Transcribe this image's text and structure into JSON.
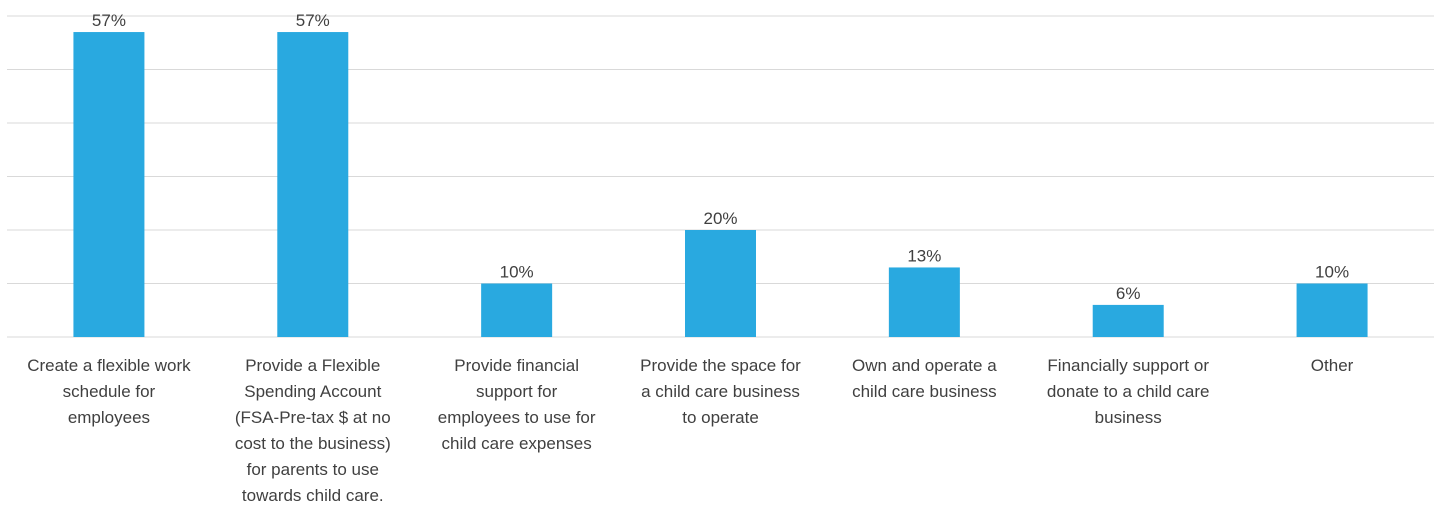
{
  "chart_data": {
    "type": "bar",
    "categories": [
      "Create a flexible work schedule for employees",
      "Provide a Flexible Spending Account (FSA-Pre-tax $ at no cost to the business) for parents to use towards child care.",
      "Provide financial support for employees to use for child care expenses",
      "Provide the space for a child care business to operate",
      "Own and operate a child care business",
      "Financially support or donate to a child care business",
      "Other"
    ],
    "category_lines": [
      [
        "Create a flexible work",
        "schedule for",
        "employees"
      ],
      [
        "Provide a Flexible",
        "Spending Account",
        "(FSA-Pre-tax $ at no",
        "cost to the business)",
        "for parents to use",
        "towards child care."
      ],
      [
        "Provide financial",
        "support for",
        "employees to use for",
        "child care expenses"
      ],
      [
        "Provide the space for",
        "a child care business",
        "to operate"
      ],
      [
        "Own and operate a",
        "child care business"
      ],
      [
        "Financially support or",
        "donate to a child care",
        "business"
      ],
      [
        "Other"
      ]
    ],
    "values": [
      57,
      57,
      10,
      20,
      13,
      6,
      10
    ],
    "data_labels": [
      "57%",
      "57%",
      "10%",
      "20%",
      "13%",
      "6%",
      "10%"
    ],
    "ylim": [
      0,
      60
    ],
    "grid": true,
    "bar_color": "#29A9E0",
    "grid_color": "#D9D9D9",
    "text_color": "#404040"
  }
}
